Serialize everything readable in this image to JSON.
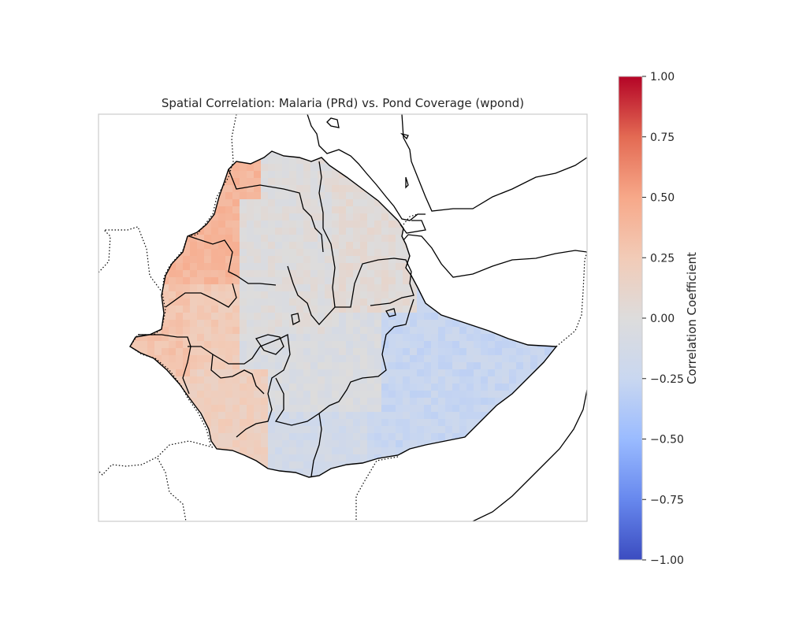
{
  "title": "Spatial Correlation: Malaria (PRd) vs. Pond Coverage (wpond)",
  "colorbar": {
    "label": "Correlation Coefficient",
    "colormap": "coolwarm",
    "range": [
      -1.0,
      1.0
    ],
    "ticks": [
      {
        "value": 1.0,
        "label": "1.00"
      },
      {
        "value": 0.75,
        "label": "0.75"
      },
      {
        "value": 0.5,
        "label": "0.50"
      },
      {
        "value": 0.25,
        "label": "0.25"
      },
      {
        "value": 0.0,
        "label": "0.00"
      },
      {
        "value": -0.25,
        "label": "−0.25"
      },
      {
        "value": -0.5,
        "label": "−0.50"
      },
      {
        "value": -0.75,
        "label": "−0.75"
      },
      {
        "value": -1.0,
        "label": "−1.00"
      }
    ],
    "stops": [
      "#3b4cc0",
      "#6788ee",
      "#9abbff",
      "#c9d7f0",
      "#dddcdc",
      "#f2cbb7",
      "#f7a889",
      "#e36a53",
      "#b40426"
    ]
  },
  "map": {
    "projection": "PlateCarree",
    "extent_lon": [
      32.5,
      48.5
    ],
    "extent_lat": [
      2.5,
      15.8
    ],
    "features": [
      "coastline",
      "country-borders",
      "admin-regions"
    ],
    "cell_size_deg": 0.25,
    "regional_mean_correlation": [
      {
        "region": "north-west",
        "value": 0.4
      },
      {
        "region": "west",
        "value": 0.3
      },
      {
        "region": "south-west",
        "value": 0.2
      },
      {
        "region": "central-north",
        "value": 0.0
      },
      {
        "region": "central",
        "value": -0.05
      },
      {
        "region": "south",
        "value": -0.15
      },
      {
        "region": "east",
        "value": -0.25
      }
    ]
  }
}
